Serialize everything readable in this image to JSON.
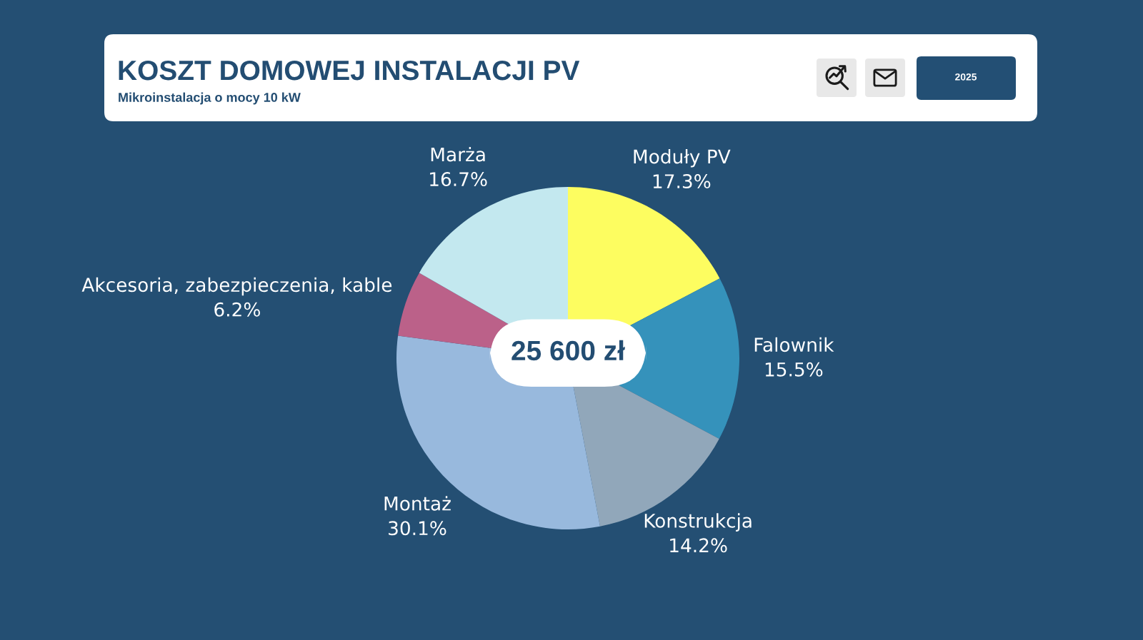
{
  "chart_data": {
    "type": "pie",
    "title": "KOSZT DOMOWEJ INSTALACJI PV",
    "subtitle": "Mikroinstalacja o mocy 10 kW",
    "categories": [
      "Moduły PV",
      "Falownik",
      "Konstrukcja",
      "Montaż",
      "Akcesoria, zabezpieczenia, kable",
      "Marża"
    ],
    "values": [
      17.3,
      15.5,
      14.2,
      30.1,
      6.2,
      16.7
    ],
    "colors": [
      "#fdfd60",
      "#3592bb",
      "#91a7ba",
      "#98b9dd",
      "#bb6189",
      "#c3e8ef"
    ],
    "value_labels": [
      "17.3%",
      "15.5%",
      "14.2%",
      "30.1%",
      "6.2%",
      "16.7%"
    ],
    "annotations": [
      "25 600 zł",
      "2025"
    ]
  }
}
